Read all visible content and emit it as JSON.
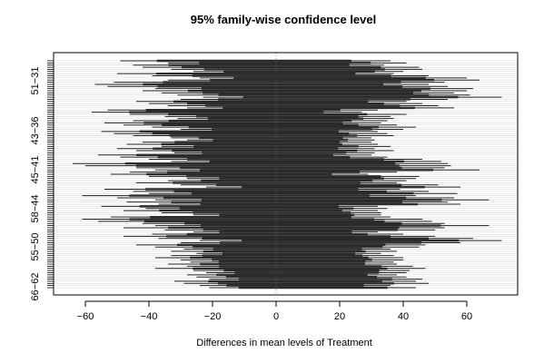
{
  "chart_data": {
    "type": "interval",
    "title": "95% family-wise confidence level",
    "xlabel": "Differences in mean levels of Treatment",
    "ylabel": "",
    "xlim": [
      -70,
      76
    ],
    "xticks": [
      -60,
      -40,
      -20,
      0,
      20,
      40,
      60
    ],
    "xtick_labels": [
      "−60",
      "−40",
      "−20",
      "0",
      "20",
      "40",
      "60"
    ],
    "ytick_labels": [
      "51−31",
      "43−36",
      "45−41",
      "58−44",
      "55−50",
      "66−62"
    ],
    "reference_line": 0,
    "intervals": [
      {
        "lwr": -49,
        "diff": -8,
        "upr": 36
      },
      {
        "lwr": -34,
        "diff": 1,
        "upr": 41
      },
      {
        "lwr": -45,
        "diff": -5,
        "upr": 34
      },
      {
        "lwr": -42,
        "diff": 2,
        "upr": 45
      },
      {
        "lwr": -33,
        "diff": 4,
        "upr": 46
      },
      {
        "lwr": -26,
        "diff": 8,
        "upr": 40
      },
      {
        "lwr": -50,
        "diff": -6,
        "upr": 37
      },
      {
        "lwr": -39,
        "diff": 6,
        "upr": 48
      },
      {
        "lwr": -24,
        "diff": 14,
        "upr": 60
      },
      {
        "lwr": -34,
        "diff": 13,
        "upr": 64
      },
      {
        "lwr": -51,
        "diff": 4,
        "upr": 53
      },
      {
        "lwr": -57,
        "diff": -3,
        "upr": 48
      },
      {
        "lwr": -53,
        "diff": 3,
        "upr": 54
      },
      {
        "lwr": -38,
        "diff": 14,
        "upr": 62
      },
      {
        "lwr": -42,
        "diff": 9,
        "upr": 60
      },
      {
        "lwr": -36,
        "diff": 10,
        "upr": 56
      },
      {
        "lwr": -31,
        "diff": 15,
        "upr": 61
      },
      {
        "lwr": -23,
        "diff": 22,
        "upr": 71
      },
      {
        "lwr": -30,
        "diff": 12,
        "upr": 54
      },
      {
        "lwr": -44,
        "diff": -2,
        "upr": 41
      },
      {
        "lwr": -40,
        "diff": 3,
        "upr": 46
      },
      {
        "lwr": -34,
        "diff": 8,
        "upr": 51
      },
      {
        "lwr": -28,
        "diff": 12,
        "upr": 56
      },
      {
        "lwr": -53,
        "diff": -10,
        "upr": 32
      },
      {
        "lwr": -58,
        "diff": -16,
        "upr": 27
      },
      {
        "lwr": -46,
        "diff": -3,
        "upr": 41
      },
      {
        "lwr": -35,
        "diff": 0,
        "upr": 36
      },
      {
        "lwr": -31,
        "diff": 3,
        "upr": 37
      },
      {
        "lwr": -45,
        "diff": -5,
        "upr": 35
      },
      {
        "lwr": -54,
        "diff": -10,
        "upr": 33
      },
      {
        "lwr": -48,
        "diff": -5,
        "upr": 38
      },
      {
        "lwr": -39,
        "diff": 2,
        "upr": 44
      },
      {
        "lwr": -30,
        "diff": 5,
        "upr": 40
      },
      {
        "lwr": -55,
        "diff": -12,
        "upr": 32
      },
      {
        "lwr": -51,
        "diff": -8,
        "upr": 35
      },
      {
        "lwr": -45,
        "diff": -4,
        "upr": 37
      },
      {
        "lwr": -33,
        "diff": -2,
        "upr": 30
      },
      {
        "lwr": -28,
        "diff": 1,
        "upr": 31
      },
      {
        "lwr": -42,
        "diff": -6,
        "upr": 30
      },
      {
        "lwr": -47,
        "diff": -8,
        "upr": 32
      },
      {
        "lwr": -36,
        "diff": 0,
        "upr": 36
      },
      {
        "lwr": -50,
        "diff": -10,
        "upr": 31
      },
      {
        "lwr": -44,
        "diff": -4,
        "upr": 37
      },
      {
        "lwr": -32,
        "diff": -1,
        "upr": 31
      },
      {
        "lwr": -56,
        "diff": -13,
        "upr": 30
      },
      {
        "lwr": -49,
        "diff": -7,
        "upr": 35
      },
      {
        "lwr": -40,
        "diff": 3,
        "upr": 46
      },
      {
        "lwr": -33,
        "diff": 10,
        "upr": 52
      },
      {
        "lwr": -64,
        "diff": -5,
        "upr": 54
      },
      {
        "lwr": -60,
        "diff": -3,
        "upr": 55
      },
      {
        "lwr": -44,
        "diff": 5,
        "upr": 53
      },
      {
        "lwr": -38,
        "diff": 12,
        "upr": 64
      },
      {
        "lwr": -46,
        "diff": -4,
        "upr": 38
      },
      {
        "lwr": -52,
        "diff": -12,
        "upr": 29
      },
      {
        "lwr": -40,
        "diff": 2,
        "upr": 45
      },
      {
        "lwr": -28,
        "diff": 8,
        "upr": 44
      },
      {
        "lwr": -34,
        "diff": 3,
        "upr": 41
      },
      {
        "lwr": -44,
        "diff": -3,
        "upr": 38
      },
      {
        "lwr": -30,
        "diff": 10,
        "upr": 51
      },
      {
        "lwr": -22,
        "diff": 18,
        "upr": 58
      },
      {
        "lwr": -54,
        "diff": -8,
        "upr": 39
      },
      {
        "lwr": -45,
        "diff": 1,
        "upr": 48
      },
      {
        "lwr": -40,
        "diff": 8,
        "upr": 57
      },
      {
        "lwr": -61,
        "diff": -8,
        "upr": 44
      },
      {
        "lwr": -50,
        "diff": 2,
        "upr": 56
      },
      {
        "lwr": -38,
        "diff": 14,
        "upr": 67
      },
      {
        "lwr": -47,
        "diff": 3,
        "upr": 54
      },
      {
        "lwr": -37,
        "diff": 10,
        "upr": 58
      },
      {
        "lwr": -55,
        "diff": -12,
        "upr": 32
      },
      {
        "lwr": -41,
        "diff": -3,
        "upr": 35
      },
      {
        "lwr": -48,
        "diff": -8,
        "upr": 32
      },
      {
        "lwr": -36,
        "diff": -1,
        "upr": 33
      },
      {
        "lwr": -26,
        "diff": 3,
        "upr": 33
      },
      {
        "lwr": -52,
        "diff": -8,
        "upr": 36
      },
      {
        "lwr": -61,
        "diff": -8,
        "upr": 46
      },
      {
        "lwr": -56,
        "diff": -4,
        "upr": 49
      },
      {
        "lwr": -42,
        "diff": 5,
        "upr": 53
      },
      {
        "lwr": -38,
        "diff": 13,
        "upr": 67
      },
      {
        "lwr": -48,
        "diff": 2,
        "upr": 53
      },
      {
        "lwr": -35,
        "diff": 8,
        "upr": 50
      },
      {
        "lwr": -26,
        "diff": 3,
        "upr": 32
      },
      {
        "lwr": -39,
        "diff": 0,
        "upr": 40
      },
      {
        "lwr": -48,
        "diff": 0,
        "upr": 50
      },
      {
        "lwr": -37,
        "diff": 12,
        "upr": 62
      },
      {
        "lwr": -24,
        "diff": 23,
        "upr": 71
      },
      {
        "lwr": -30,
        "diff": 14,
        "upr": 58
      },
      {
        "lwr": -44,
        "diff": 2,
        "upr": 47
      },
      {
        "lwr": -38,
        "diff": 4,
        "upr": 45
      },
      {
        "lwr": -29,
        "diff": 4,
        "upr": 36
      },
      {
        "lwr": -33,
        "diff": 3,
        "upr": 38
      },
      {
        "lwr": -25,
        "diff": 4,
        "upr": 33
      },
      {
        "lwr": -33,
        "diff": 2,
        "upr": 37
      },
      {
        "lwr": -38,
        "diff": 1,
        "upr": 40
      },
      {
        "lwr": -30,
        "diff": 5,
        "upr": 40
      },
      {
        "lwr": -27,
        "diff": 5,
        "upr": 37
      },
      {
        "lwr": -34,
        "diff": 2,
        "upr": 38
      },
      {
        "lwr": -28,
        "diff": 8,
        "upr": 43
      },
      {
        "lwr": -38,
        "diff": 4,
        "upr": 47
      },
      {
        "lwr": -26,
        "diff": 8,
        "upr": 42
      },
      {
        "lwr": -22,
        "diff": 10,
        "upr": 41
      },
      {
        "lwr": -28,
        "diff": 5,
        "upr": 38
      },
      {
        "lwr": -25,
        "diff": 8,
        "upr": 41
      },
      {
        "lwr": -21,
        "diff": 12,
        "upr": 46
      },
      {
        "lwr": -32,
        "diff": 6,
        "upr": 44
      },
      {
        "lwr": -29,
        "diff": 9,
        "upr": 48
      },
      {
        "lwr": -24,
        "diff": 6,
        "upr": 36
      },
      {
        "lwr": -21,
        "diff": 12,
        "upr": 44
      }
    ]
  }
}
